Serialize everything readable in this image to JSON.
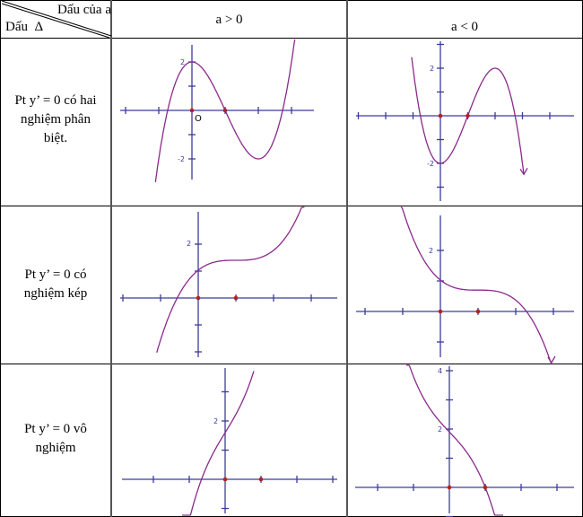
{
  "header": {
    "corner_top": "Dấu của a",
    "corner_bottom": "Dấu  Δ",
    "col_a_pos": "a > 0",
    "col_a_neg": "a < 0"
  },
  "rows": [
    {
      "label_lines": [
        "Pt y’ = 0 có hai",
        "nghiệm phân",
        "biệt."
      ]
    },
    {
      "label_lines": [
        "Pt y’ = 0 có",
        "nghiệm kép"
      ]
    },
    {
      "label_lines": [
        "Pt y’ = 0 vô",
        "nghiệm"
      ]
    }
  ],
  "graphs": {
    "g1": {
      "labels": [
        "2",
        "-2"
      ],
      "origin": "O"
    },
    "g2": {
      "labels": [
        "2",
        "-2"
      ]
    },
    "g3": {
      "labels": [
        "2"
      ]
    },
    "g4": {
      "labels": [
        "2"
      ]
    },
    "g5": {
      "labels": [
        "2"
      ]
    },
    "g6": {
      "labels": [
        "2",
        "4"
      ]
    }
  },
  "colors": {
    "axis": "#3c3c9a",
    "curve": "#8a2a8a",
    "point": "#b22222"
  }
}
